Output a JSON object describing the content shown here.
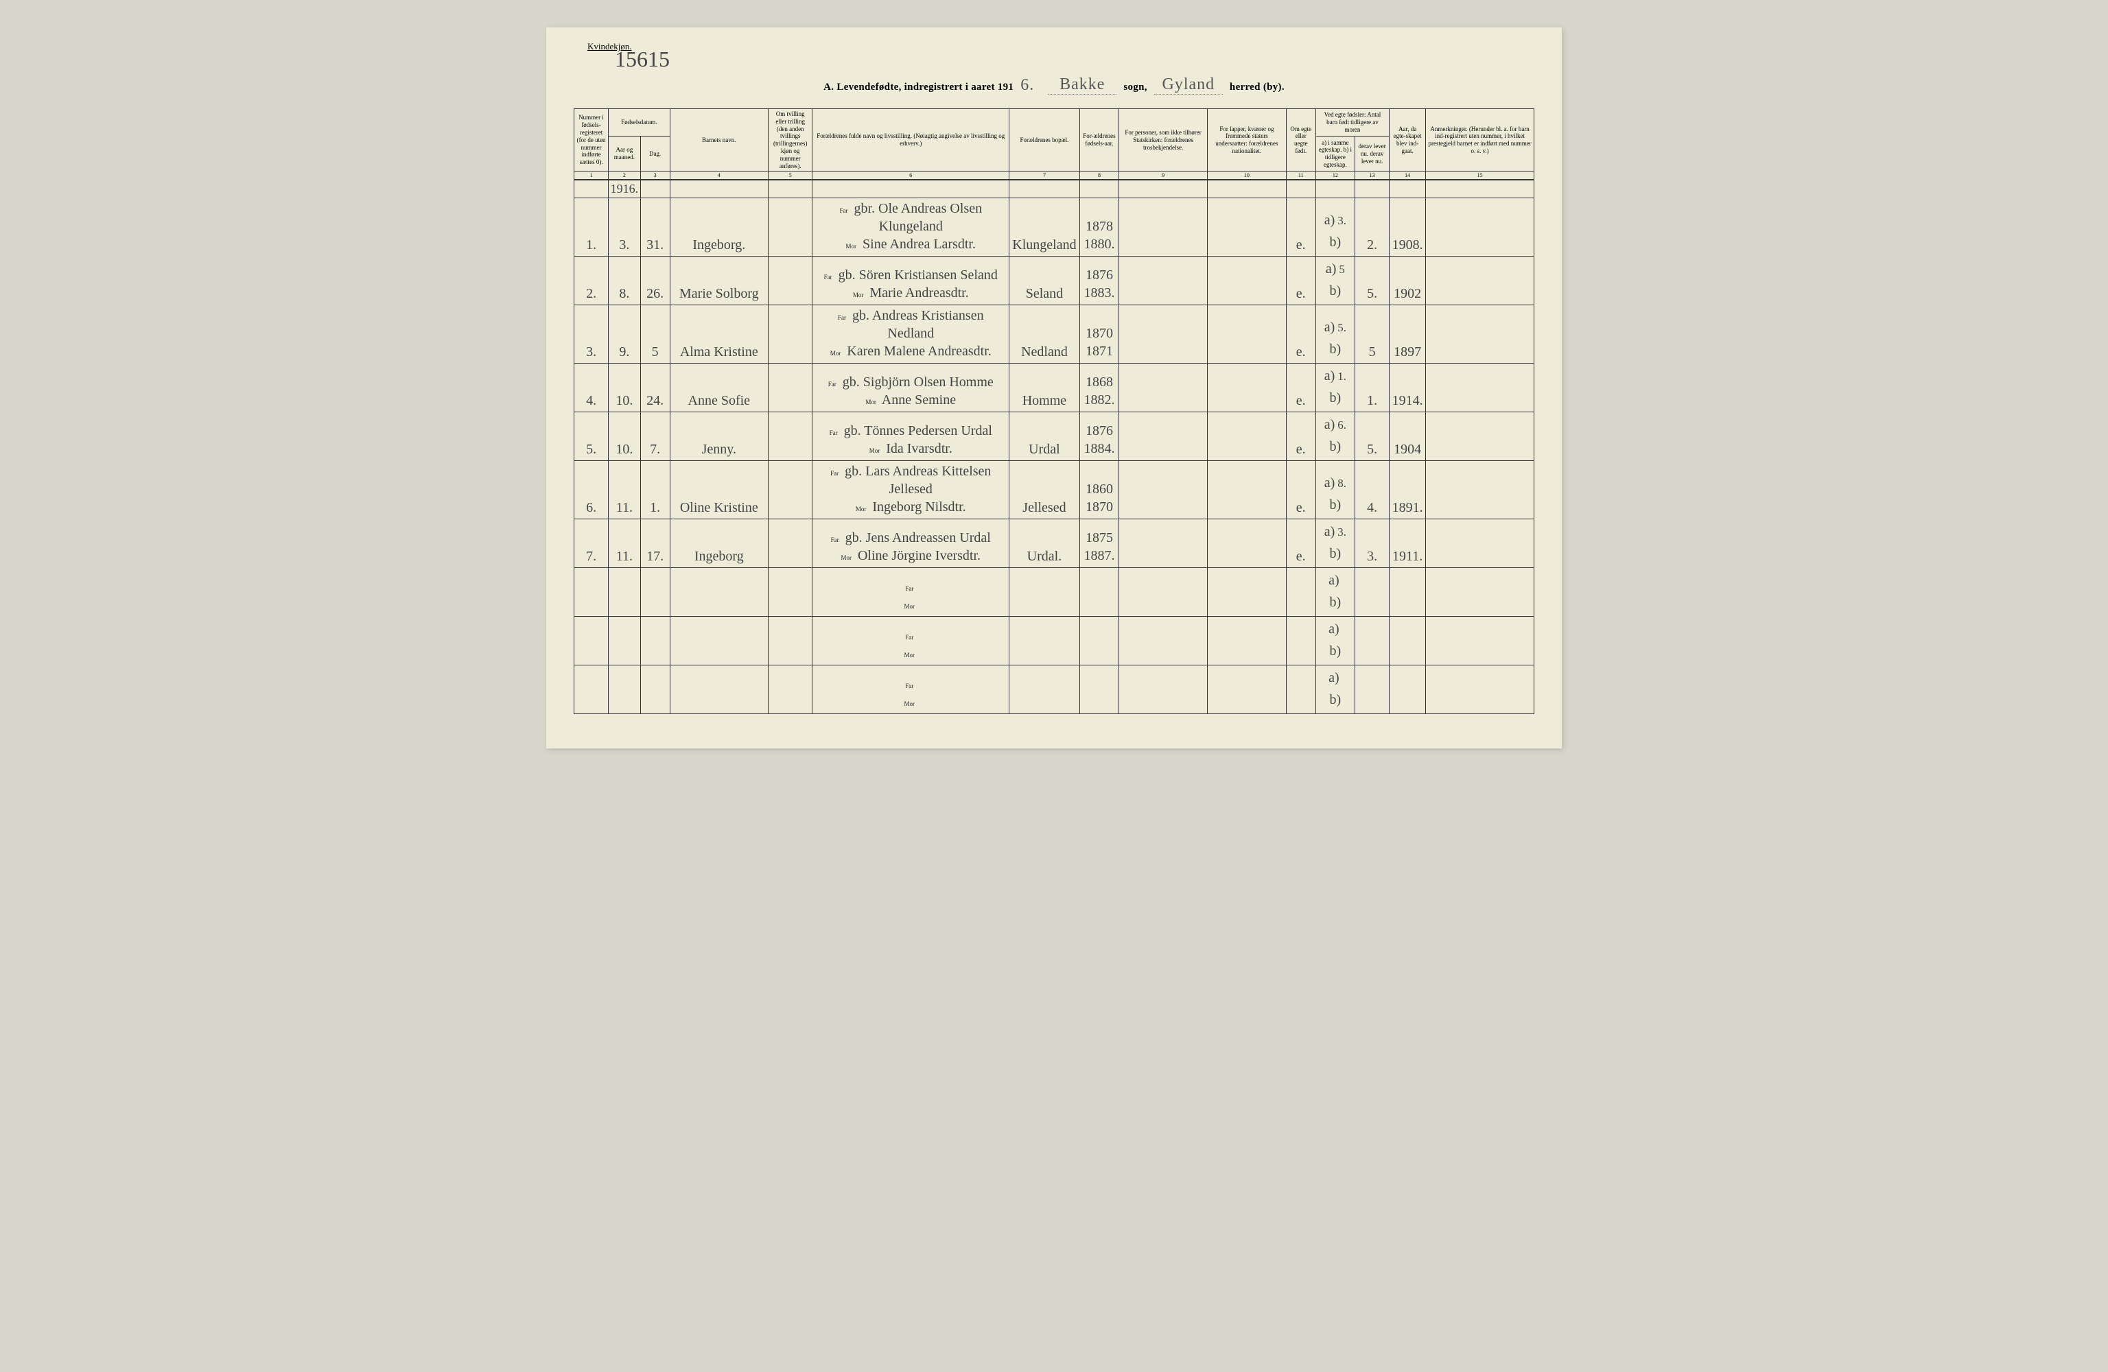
{
  "corner_label": "Kvindekjøn.",
  "page_number_hw": "15615",
  "title": {
    "prefix": "A.",
    "main": "Levendefødte, indregistrert i aaret 191",
    "year_suffix": "6.",
    "sogn_hw": "Bakke",
    "sogn_label": "sogn,",
    "herred_hw": "Gyland",
    "herred_label": "herred (by)."
  },
  "headers": {
    "c1": "Nummer i fødsels-registeret (for de uten nummer indførte sættes 0).",
    "c2_top": "Fødselsdatum.",
    "c2": "Aar og maaned.",
    "c3": "Dag.",
    "c4": "Barnets navn.",
    "c5": "Om tvilling eller trilling (den anden tvillings (trillingernes) kjøn og nummer anføres).",
    "c6": "Forældrenes fulde navn og livsstilling. (Nøiagtig angivelse av livsstilling og erhverv.)",
    "c7": "Forældrenes bopæl.",
    "c8": "For-ældrenes fødsels-aar.",
    "c9": "For personer, som ikke tilhører Statskirken: forældrenes trosbekjendelse.",
    "c10": "For lapper, kvæner og fremmede staters undersaatter: forældrenes nationalitet.",
    "c11": "Om egte eller uegte født.",
    "c12_top": "Ved egte fødsler: Antal barn født tidligere av moren",
    "c12": "a) i samme egteskap. b) i tidligere egteskap.",
    "c13": "derav lever nu. derav lever nu.",
    "c14": "Aar, da egte-skapet blev ind-gaat.",
    "c15": "Anmerkninger. (Herunder bl. a. for barn ind-registrert uten nummer, i hvilket prestegjeld barnet er indført med nummer o. s. v.)"
  },
  "colnums": [
    "1",
    "2",
    "3",
    "4",
    "5",
    "6",
    "7",
    "8",
    "9",
    "10",
    "11",
    "12",
    "13",
    "14",
    "15"
  ],
  "year_row": "1916.",
  "far_label": "Far",
  "mor_label": "Mor",
  "rows": [
    {
      "n": "1.",
      "mon": "3.",
      "day": "31.",
      "name": "Ingeborg.",
      "far": "gbr. Ole Andreas Olsen Klungeland",
      "mor": "Sine Andrea Larsdtr.",
      "bopael": "Klungeland",
      "y1": "1878",
      "y2": "1880.",
      "egte": "e.",
      "a": "3.",
      "lev": "2.",
      "aar": "1908."
    },
    {
      "n": "2.",
      "mon": "8.",
      "day": "26.",
      "name": "Marie Solborg",
      "far": "gb. Sören Kristiansen Seland",
      "mor": "Marie Andreasdtr.",
      "bopael": "Seland",
      "y1": "1876",
      "y2": "1883.",
      "egte": "e.",
      "a": "5",
      "lev": "5.",
      "aar": "1902"
    },
    {
      "n": "3.",
      "mon": "9.",
      "day": "5",
      "name": "Alma Kristine",
      "far": "gb. Andreas Kristiansen Nedland",
      "mor": "Karen Malene Andreasdtr.",
      "bopael": "Nedland",
      "y1": "1870",
      "y2": "1871",
      "egte": "e.",
      "a": "5.",
      "lev": "5",
      "aar": "1897"
    },
    {
      "n": "4.",
      "mon": "10.",
      "day": "24.",
      "name": "Anne Sofie",
      "far": "gb. Sigbjörn Olsen Homme",
      "mor": "Anne Semine",
      "bopael": "Homme",
      "y1": "1868",
      "y2": "1882.",
      "egte": "e.",
      "a": "1.",
      "lev": "1.",
      "aar": "1914."
    },
    {
      "n": "5.",
      "mon": "10.",
      "day": "7.",
      "name": "Jenny.",
      "far": "gb. Tönnes Pedersen Urdal",
      "mor": "Ida Ivarsdtr.",
      "bopael": "Urdal",
      "y1": "1876",
      "y2": "1884.",
      "egte": "e.",
      "a": "6.",
      "lev": "5.",
      "aar": "1904"
    },
    {
      "n": "6.",
      "mon": "11.",
      "day": "1.",
      "name": "Oline Kristine",
      "far": "gb. Lars Andreas Kittelsen Jellesed",
      "mor": "Ingeborg Nilsdtr.",
      "bopael": "Jellesed",
      "y1": "1860",
      "y2": "1870",
      "egte": "e.",
      "a": "8.",
      "lev": "4.",
      "aar": "1891."
    },
    {
      "n": "7.",
      "mon": "11.",
      "day": "17.",
      "name": "Ingeborg",
      "far": "gb. Jens Andreassen Urdal",
      "mor": "Oline Jörgine Iversdtr.",
      "bopael": "Urdal.",
      "y1": "1875",
      "y2": "1887.",
      "egte": "e.",
      "a": "3.",
      "lev": "3.",
      "aar": "1911."
    }
  ],
  "blank_rows": 3
}
